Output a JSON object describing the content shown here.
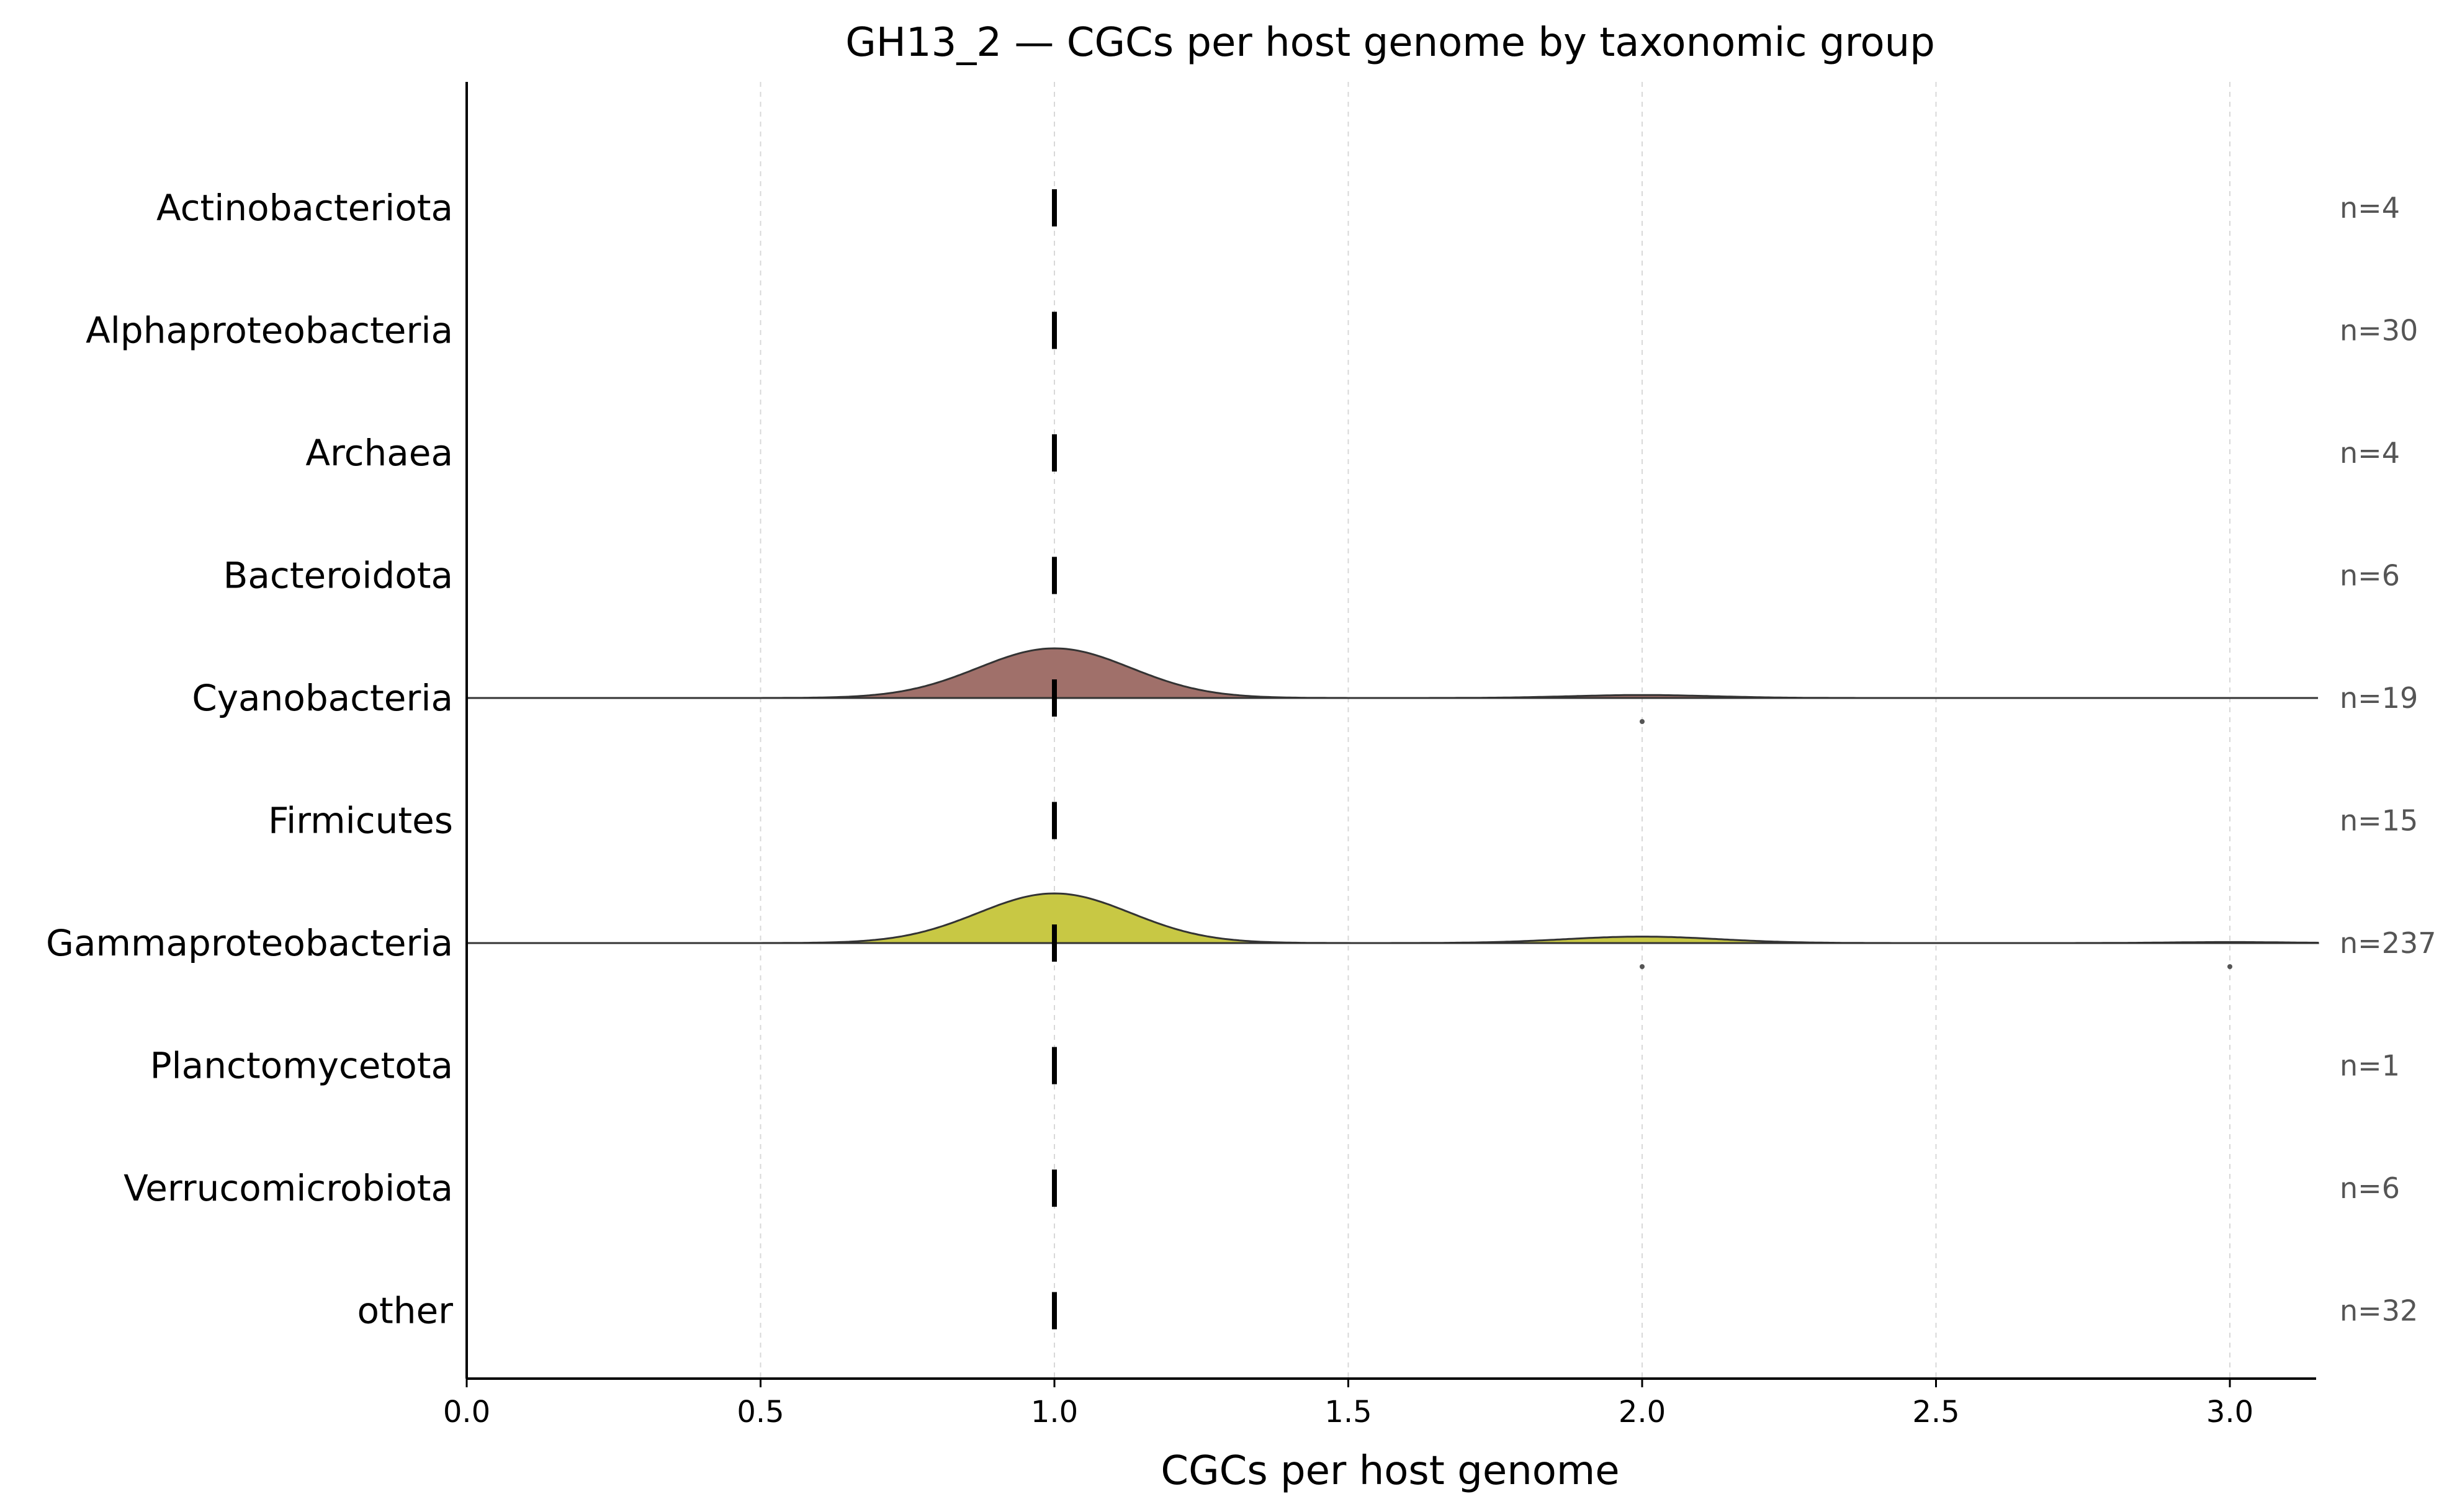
{
  "chart_data": {
    "type": "ridgeline",
    "title": "GH13_2 — CGCs per host genome by taxonomic group",
    "xlabel": "CGCs per host genome",
    "ylabel": "",
    "xlim": [
      0,
      3.15
    ],
    "xticks": [
      "0.0",
      "0.5",
      "1.0",
      "1.5",
      "2.0",
      "2.5",
      "3.0"
    ],
    "xtick_values": [
      0,
      0.5,
      1.0,
      1.5,
      2.0,
      2.5,
      3.0
    ],
    "grid": "vertical-dashed",
    "groups": [
      {
        "name": "Actinobacteriota",
        "n_label": "n=4",
        "median": 1.0,
        "density": false,
        "outliers": []
      },
      {
        "name": "Alphaproteobacteria",
        "n_label": "n=30",
        "median": 1.0,
        "density": false,
        "outliers": []
      },
      {
        "name": "Archaea",
        "n_label": "n=4",
        "median": 1.0,
        "density": false,
        "outliers": []
      },
      {
        "name": "Bacteroidota",
        "n_label": "n=6",
        "median": 1.0,
        "density": false,
        "outliers": []
      },
      {
        "name": "Cyanobacteria",
        "n_label": "n=19",
        "median": 1.0,
        "density": true,
        "color": "#a0706a",
        "peaks": [
          {
            "center": 1.0,
            "height": 1.0,
            "sd": 0.13
          },
          {
            "center": 2.0,
            "height": 0.06,
            "sd": 0.12
          }
        ],
        "outliers": [
          2.0
        ]
      },
      {
        "name": "Firmicutes",
        "n_label": "n=15",
        "median": 1.0,
        "density": false,
        "outliers": []
      },
      {
        "name": "Gammaproteobacteria",
        "n_label": "n=237",
        "median": 1.0,
        "density": true,
        "color": "#c8c844",
        "peaks": [
          {
            "center": 1.0,
            "height": 1.0,
            "sd": 0.13
          },
          {
            "center": 2.0,
            "height": 0.13,
            "sd": 0.13
          },
          {
            "center": 3.0,
            "height": 0.02,
            "sd": 0.1
          }
        ],
        "outliers": [
          2.0,
          3.0
        ]
      },
      {
        "name": "Planctomycetota",
        "n_label": "n=1",
        "median": 1.0,
        "density": false,
        "outliers": []
      },
      {
        "name": "Verrucomicrobiota",
        "n_label": "n=6",
        "median": 1.0,
        "density": false,
        "outliers": []
      },
      {
        "name": "other",
        "n_label": "n=32",
        "median": 1.0,
        "density": false,
        "outliers": []
      }
    ]
  }
}
